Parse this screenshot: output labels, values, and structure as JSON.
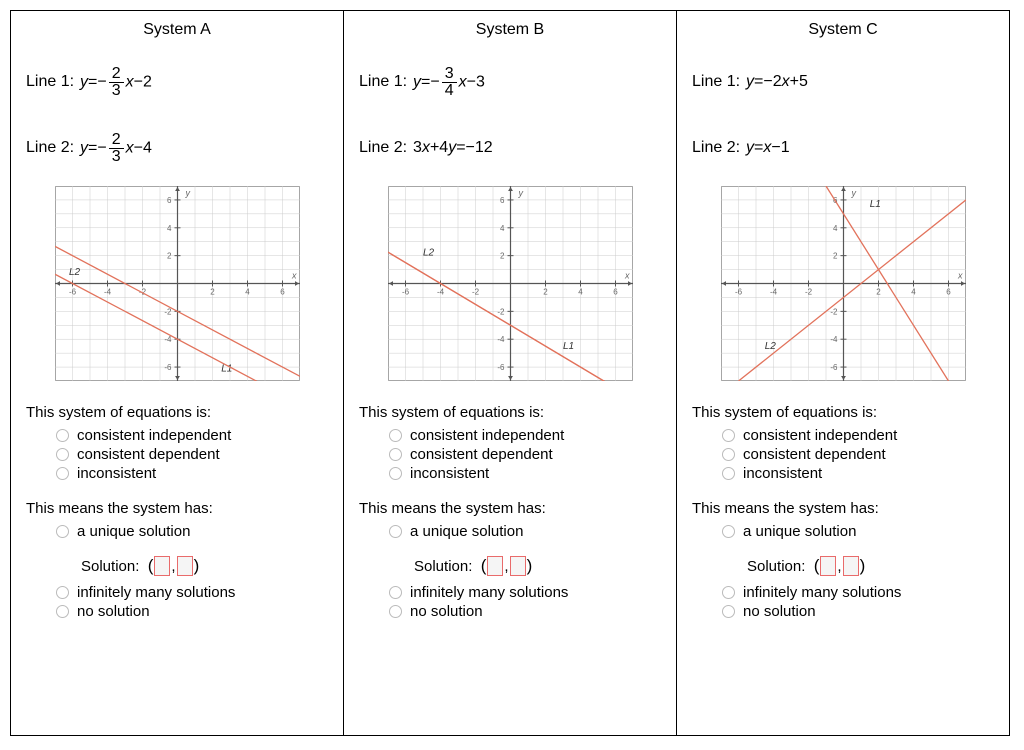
{
  "columns": [
    {
      "title": "System A",
      "line1": {
        "label": "Line 1:",
        "parts": [
          "y",
          "=",
          "−",
          {
            "frac": [
              "2",
              "3"
            ]
          },
          "x",
          "−",
          "2"
        ]
      },
      "line2": {
        "label": "Line 2:",
        "parts": [
          "y",
          "=",
          "−",
          {
            "frac": [
              "2",
              "3"
            ]
          },
          "x",
          "−",
          "4"
        ]
      },
      "graph": {
        "xlim": [
          -7,
          7
        ],
        "ylim": [
          -7,
          7
        ],
        "lines": [
          {
            "label": "L1",
            "lx": 2.5,
            "ly": -6.3,
            "pts": [
              [
                -7,
                2.667
              ],
              [
                7,
                -6.667
              ]
            ]
          },
          {
            "label": "L2",
            "lx": -6.2,
            "ly": 0.6,
            "pts": [
              [
                -7,
                0.667
              ],
              [
                7,
                -8.667
              ]
            ]
          }
        ]
      }
    },
    {
      "title": "System B",
      "line1": {
        "label": "Line 1:",
        "parts": [
          "y",
          "=",
          "−",
          {
            "frac": [
              "3",
              "4"
            ]
          },
          "x",
          "−",
          "3"
        ]
      },
      "line2": {
        "label": "Line 2:",
        "parts": [
          "3",
          "x",
          "+",
          "4",
          "y",
          "=",
          "−",
          "12"
        ]
      },
      "graph": {
        "xlim": [
          -7,
          7
        ],
        "ylim": [
          -7,
          7
        ],
        "lines": [
          {
            "label": "L1",
            "lx": 3,
            "ly": -4.7,
            "pts": [
              [
                -7,
                2.25
              ],
              [
                7,
                -8.25
              ]
            ]
          },
          {
            "label": "L2",
            "lx": -5,
            "ly": 2,
            "pts": [
              [
                -7,
                2.25
              ],
              [
                7,
                -8.25
              ]
            ]
          }
        ]
      }
    },
    {
      "title": "System C",
      "line1": {
        "label": "Line 1:",
        "parts": [
          "y",
          "=",
          "−",
          "2",
          "x",
          "+",
          "5"
        ]
      },
      "line2": {
        "label": "Line 2:",
        "parts": [
          "y",
          "=",
          "x",
          "−",
          "1"
        ]
      },
      "graph": {
        "xlim": [
          -7,
          7
        ],
        "ylim": [
          -7,
          7
        ],
        "lines": [
          {
            "label": "L1",
            "lx": 1.5,
            "ly": 5.5,
            "pts": [
              [
                -1,
                7
              ],
              [
                6,
                -7
              ]
            ]
          },
          {
            "label": "L2",
            "lx": -4.5,
            "ly": -4.7,
            "pts": [
              [
                -6,
                -7
              ],
              [
                7,
                6
              ]
            ]
          }
        ]
      }
    }
  ],
  "prompts": {
    "p1": "This system of equations is:",
    "opts1": [
      "consistent independent",
      "consistent dependent",
      "inconsistent"
    ],
    "p2": "This means the system has:",
    "opts2a": "a unique solution",
    "sol_label": "Solution:",
    "opts2b": [
      "infinitely many solutions",
      "no solution"
    ]
  },
  "style": {
    "line_color": "#e2725b",
    "grid_color": "#cccccc",
    "axis_color": "#555555",
    "text_color": "#666666",
    "border_color": "#999999"
  }
}
